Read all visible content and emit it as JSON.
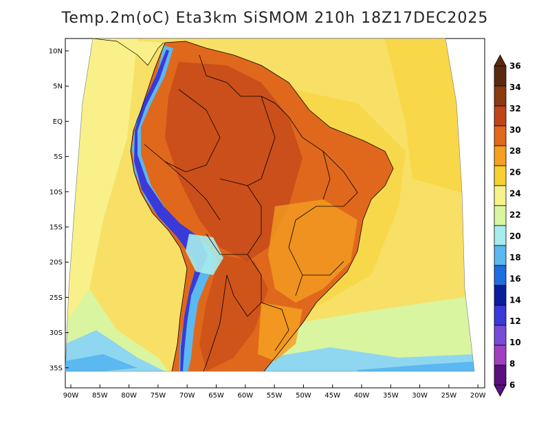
{
  "title": "Temp.2m(oC) Eta3km SiSMOM 210h 18Z17DEC2025",
  "y_axis_labels": [
    "10N",
    "5N",
    "EQ",
    "5S",
    "10S",
    "15S",
    "20S",
    "25S",
    "30S",
    "35S"
  ],
  "x_axis_labels": [
    "90W",
    "85W",
    "80W",
    "75W",
    "70W",
    "65W",
    "60W",
    "55W",
    "50W",
    "45W",
    "40W",
    "35W",
    "30W",
    "25W",
    "20W"
  ],
  "colorbar": {
    "labels": [
      "36",
      "34",
      "32",
      "30",
      "28",
      "26",
      "24",
      "22",
      "20",
      "18",
      "16",
      "14",
      "12",
      "10",
      "8",
      "6"
    ],
    "colors": [
      "#5a2a10",
      "#8b3a12",
      "#c0441a",
      "#e0681c",
      "#f5a020",
      "#f8d030",
      "#f9f28a",
      "#d9f5a0",
      "#a6ecec",
      "#5bb8f0",
      "#1e6ee0",
      "#0a1e9c",
      "#3a3ad8",
      "#7a4ad8",
      "#a040c0",
      "#5a1080"
    ],
    "top_cap_color": "#5a2a10",
    "bottom_cap_color": "#5a1080"
  },
  "colors": {
    "ocean_warm": "#f8e066",
    "ocean_mid": "#f9f08a",
    "ocean_cool": "#d9f5a0",
    "ocean_cold": "#8fd6f0",
    "land_hot": "#e0681c",
    "land_hotter": "#c0441a",
    "land_warm": "#f5a020",
    "andes_cold": "#3a3ad8",
    "andes_cool": "#5bb8f0",
    "border": "#000000"
  }
}
